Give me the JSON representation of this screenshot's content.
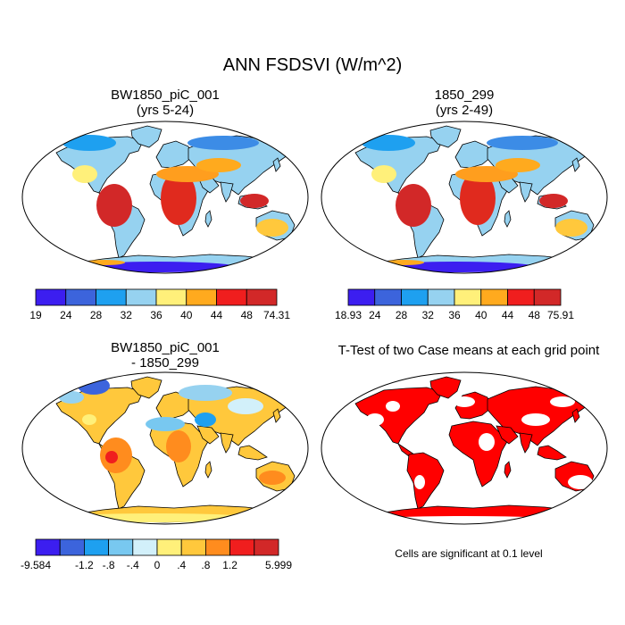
{
  "title": "ANN FSDSVI (W/m^2)",
  "panels": [
    {
      "title_line1": "BW1850_piC_001",
      "title_line2": "(yrs 5-24)",
      "colorbar": {
        "labels": [
          "19",
          "24",
          "28",
          "32",
          "36",
          "40",
          "44",
          "48",
          "74.31"
        ],
        "colors": [
          "#3c1ef0",
          "#3c64dc",
          "#1ea0f0",
          "#96d2f0",
          "#fff07a",
          "#ffaa1e",
          "#f01e1e",
          "#d22828"
        ]
      }
    },
    {
      "title_line1": "1850_299",
      "title_line2": "(yrs 2-49)",
      "colorbar": {
        "labels": [
          "18.93",
          "24",
          "28",
          "32",
          "36",
          "40",
          "44",
          "48",
          "75.91"
        ],
        "colors": [
          "#3c1ef0",
          "#3c64dc",
          "#1ea0f0",
          "#96d2f0",
          "#fff07a",
          "#ffaa1e",
          "#f01e1e",
          "#d22828"
        ]
      }
    },
    {
      "title_line1": "BW1850_piC_001",
      "title_line2": "- 1850_299",
      "colorbar": {
        "labels": [
          "-9.584",
          "-1.2",
          "-.8",
          "-.4",
          "0",
          ".4",
          ".8",
          "1.2",
          "5.999"
        ],
        "colors": [
          "#3c1ef0",
          "#3c64dc",
          "#1ea0f0",
          "#78c8f0",
          "#d2f0fa",
          "#fff07a",
          "#ffc83c",
          "#ff8c1e",
          "#f01e1e",
          "#d22828"
        ],
        "label_slots": [
          0,
          2,
          3,
          4,
          5,
          6,
          7,
          8,
          10
        ]
      }
    },
    {
      "title_line1": "T-Test of two Case means at each grid point",
      "note": "Cells are significant at 0.1 level",
      "significance_color": "#ff0000"
    }
  ]
}
